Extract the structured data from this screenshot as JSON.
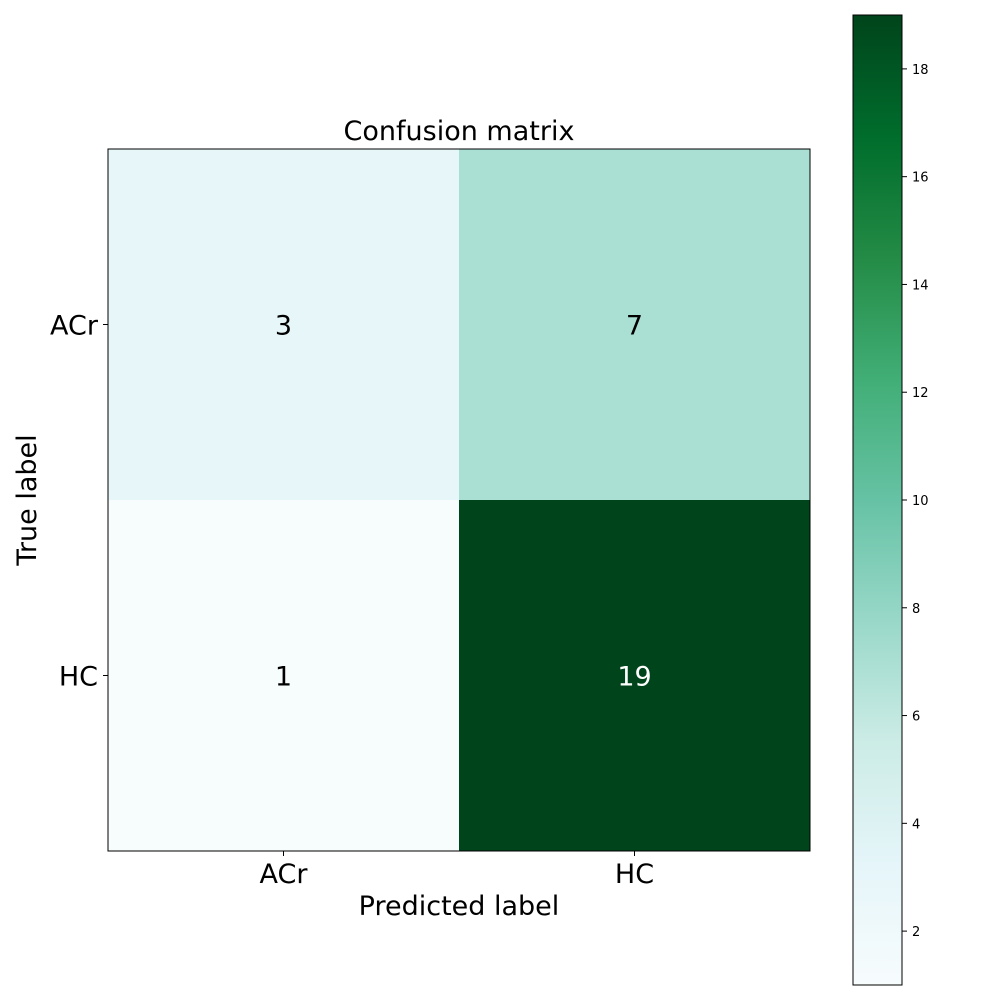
{
  "chart_data": {
    "type": "heatmap",
    "title": "Confusion matrix",
    "xlabel": "Predicted label",
    "ylabel": "True label",
    "x_categories": [
      "ACr",
      "HC"
    ],
    "y_categories": [
      "ACr",
      "HC"
    ],
    "values": [
      [
        3,
        7
      ],
      [
        1,
        19
      ]
    ],
    "colormap": "Greens-like (BuGn)",
    "colorbar": {
      "min": 1,
      "max": 19,
      "ticks": [
        2,
        4,
        6,
        8,
        10,
        12,
        14,
        16,
        18
      ]
    },
    "colors": {
      "low": "#f7fcfd",
      "high": "#00441b",
      "text_dark": "#000000",
      "text_light": "#ffffff"
    }
  }
}
